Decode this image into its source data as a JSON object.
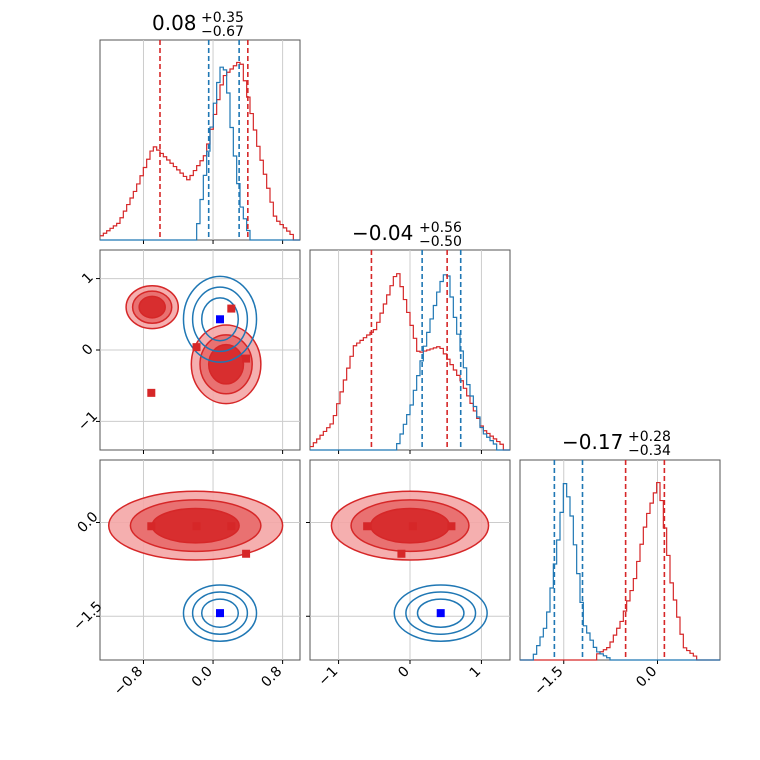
{
  "colors": {
    "red": "#d62728",
    "blue": "#1f77b4",
    "red_fill_light": "#f4a6a6",
    "red_fill_dark": "#d62728",
    "grid": "#cccccc"
  },
  "chart_data": {
    "type": "corner",
    "parameters": [
      {
        "title": {
          "median": "0.08",
          "plus": "+0.35",
          "minus": "−0.67"
        },
        "range": [
          -1.3,
          1.0
        ],
        "ticks": [
          -0.8,
          0.0,
          0.8
        ],
        "tick_labels": [
          "−0.8",
          "0.0",
          "0.8"
        ],
        "quantiles_red": [
          -0.61,
          0.4
        ],
        "quantiles_blue": [
          -0.05,
          0.3
        ]
      },
      {
        "title": {
          "median": "−0.04",
          "plus": "+0.56",
          "minus": "−0.50"
        },
        "range": [
          -1.4,
          1.4
        ],
        "ticks": [
          -1,
          0,
          1
        ],
        "tick_labels": [
          "−1",
          "0",
          "1"
        ],
        "quantiles_red": [
          -0.54,
          0.52
        ],
        "quantiles_blue": [
          0.17,
          0.71
        ]
      },
      {
        "title": {
          "median": "−0.17",
          "plus": "+0.28",
          "minus": "−0.34"
        },
        "range": [
          -2.2,
          1.0
        ],
        "ticks": [
          -1.5,
          0.0
        ],
        "tick_labels": [
          "−1.5",
          "0.0"
        ],
        "quantiles_red": [
          -0.51,
          0.11
        ],
        "quantiles_blue": [
          -1.65,
          -1.2
        ]
      }
    ],
    "markers": {
      "red_p1": [
        -0.71,
        -0.19,
        0.21,
        0.38
      ],
      "red_p2": [
        -0.6,
        0.04,
        0.58,
        -0.12
      ],
      "red_p3": [
        -0.06,
        -0.06,
        -0.06,
        -0.5
      ],
      "blue_p1": [
        0.08
      ],
      "blue_p2": [
        0.43
      ],
      "blue_p3": [
        -1.45
      ]
    },
    "histograms": {
      "p1_red": {
        "x": [
          -1.3,
          -1.1,
          -0.9,
          -0.7,
          -0.5,
          -0.3,
          -0.1,
          0.1,
          0.3,
          0.5,
          0.7,
          0.9
        ],
        "y": [
          0.01,
          0.04,
          0.12,
          0.22,
          0.18,
          0.14,
          0.2,
          0.38,
          0.42,
          0.22,
          0.05,
          0.01
        ]
      },
      "p1_blue": {
        "x": [
          -0.2,
          -0.1,
          0.0,
          0.05,
          0.1,
          0.15,
          0.2,
          0.3,
          0.4
        ],
        "y": [
          0.05,
          0.4,
          0.75,
          0.9,
          1.0,
          0.85,
          0.6,
          0.2,
          0.03
        ]
      },
      "p2_red": {
        "x": [
          -1.4,
          -1.1,
          -0.8,
          -0.5,
          -0.2,
          0.1,
          0.4,
          0.7,
          1.0,
          1.3
        ],
        "y": [
          0.01,
          0.08,
          0.3,
          0.35,
          0.52,
          0.28,
          0.3,
          0.2,
          0.06,
          0.01
        ]
      },
      "p2_blue": {
        "x": [
          -0.2,
          0.0,
          0.2,
          0.4,
          0.5,
          0.6,
          0.8,
          1.0,
          1.2
        ],
        "y": [
          0.02,
          0.25,
          0.6,
          0.92,
          1.0,
          0.75,
          0.35,
          0.1,
          0.02
        ]
      },
      "p3_red": {
        "x": [
          -1.0,
          -0.8,
          -0.6,
          -0.4,
          -0.2,
          0.0,
          0.2,
          0.4,
          0.6
        ],
        "y": [
          0.02,
          0.05,
          0.15,
          0.3,
          0.55,
          0.7,
          0.3,
          0.05,
          0.01
        ]
      },
      "p3_blue": {
        "x": [
          -2.0,
          -1.8,
          -1.6,
          -1.5,
          -1.4,
          -1.3,
          -1.2,
          -1.0,
          -0.8
        ],
        "y": [
          0.02,
          0.2,
          0.7,
          1.0,
          0.8,
          0.5,
          0.2,
          0.05,
          0.01
        ]
      }
    },
    "contours": {
      "p2_vs_p1_red": [
        {
          "cx": -0.7,
          "cy": 0.6,
          "rx": 0.3,
          "ry": 0.3
        },
        {
          "cx": 0.15,
          "cy": -0.2,
          "rx": 0.4,
          "ry": 0.55
        }
      ],
      "p2_vs_p1_blue": {
        "cx": 0.08,
        "cy": 0.43,
        "rx": 0.42,
        "ry": 0.6
      },
      "p3_vs_p1_red": {
        "cx": -0.2,
        "cy": -0.05,
        "rx": 1.0,
        "ry": 0.55
      },
      "p3_vs_p1_blue": {
        "cx": 0.08,
        "cy": -1.45,
        "rx": 0.42,
        "ry": 0.45
      },
      "p3_vs_p2_red": {
        "cx": 0.0,
        "cy": -0.05,
        "rx": 1.1,
        "ry": 0.55
      },
      "p3_vs_p2_blue": {
        "cx": 0.43,
        "cy": -1.45,
        "rx": 0.65,
        "ry": 0.45
      }
    },
    "grid": true,
    "legend": "none"
  }
}
